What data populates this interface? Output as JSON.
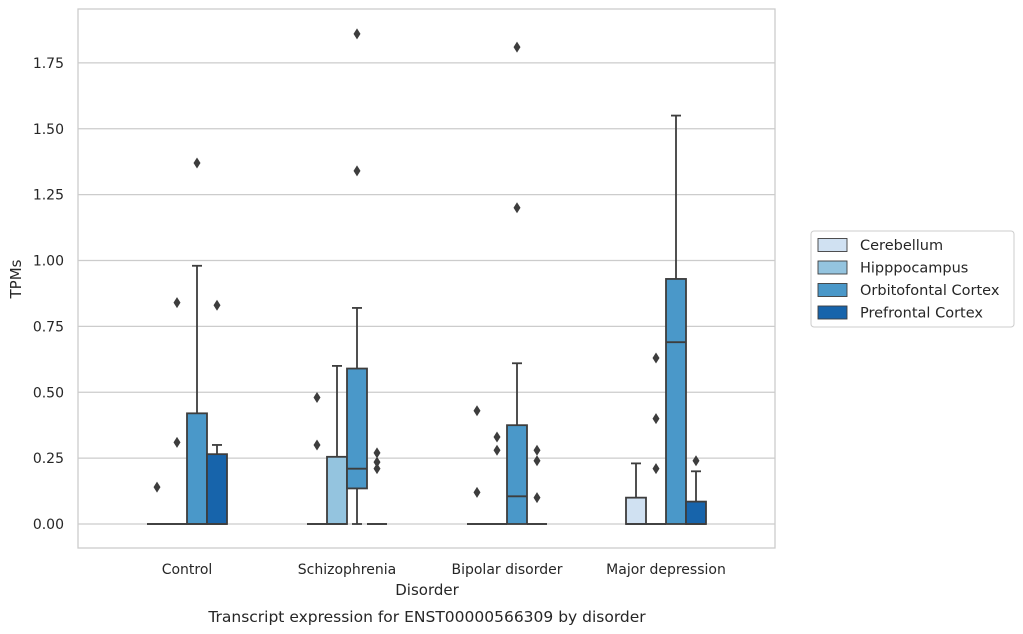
{
  "chart_data": {
    "type": "box",
    "xlabel": "Disorder",
    "ylabel": "TPMs",
    "caption": "Transcript expression for ENST00000566309 by disorder",
    "ylim": [
      -0.09,
      1.96
    ],
    "yticks": [
      0.0,
      0.25,
      0.5,
      0.75,
      1.0,
      1.25,
      1.5,
      1.75
    ],
    "ytick_labels": [
      "0.00",
      "0.25",
      "0.50",
      "0.75",
      "1.00",
      "1.25",
      "1.50",
      "1.75"
    ],
    "grid": "horizontal",
    "legend_position": "right",
    "categories": [
      "Control",
      "Schizophrenia",
      "Bipolar disorder",
      "Major depression"
    ],
    "series": [
      {
        "name": "Cerebellum",
        "color": "#d0e1f2",
        "boxes": [
          {
            "q1": 0,
            "median": 0,
            "q3": 0,
            "whisker_low": 0,
            "whisker_high": 0,
            "outliers": [
              0.14
            ]
          },
          {
            "q1": 0,
            "median": 0,
            "q3": 0,
            "whisker_low": 0,
            "whisker_high": 0,
            "outliers": [
              0.3,
              0.48
            ]
          },
          {
            "q1": 0,
            "median": 0,
            "q3": 0,
            "whisker_low": 0,
            "whisker_high": 0,
            "outliers": [
              0.12,
              0.43
            ]
          },
          {
            "q1": 0,
            "median": 0,
            "q3": 0.1,
            "whisker_low": 0,
            "whisker_high": 0.23,
            "outliers": []
          }
        ]
      },
      {
        "name": "Hipppocampus",
        "color": "#94c4df",
        "boxes": [
          {
            "q1": 0,
            "median": 0,
            "q3": 0,
            "whisker_low": 0,
            "whisker_high": 0,
            "outliers": [
              0.31,
              0.84
            ]
          },
          {
            "q1": 0,
            "median": 0,
            "q3": 0.255,
            "whisker_low": 0,
            "whisker_high": 0.6,
            "outliers": []
          },
          {
            "q1": 0,
            "median": 0,
            "q3": 0,
            "whisker_low": 0,
            "whisker_high": 0,
            "outliers": [
              0.28,
              0.33
            ]
          },
          {
            "q1": 0,
            "median": 0,
            "q3": 0,
            "whisker_low": 0,
            "whisker_high": 0,
            "outliers": [
              0.21,
              0.4,
              0.63
            ]
          }
        ]
      },
      {
        "name": "Orbitofontal Cortex",
        "color": "#4a98c9",
        "boxes": [
          {
            "q1": 0,
            "median": 0,
            "q3": 0.42,
            "whisker_low": 0,
            "whisker_high": 0.98,
            "outliers": [
              1.37
            ]
          },
          {
            "q1": 0.135,
            "median": 0.21,
            "q3": 0.59,
            "whisker_low": 0,
            "whisker_high": 0.82,
            "outliers": [
              1.34,
              1.86
            ]
          },
          {
            "q1": 0,
            "median": 0.105,
            "q3": 0.375,
            "whisker_low": 0,
            "whisker_high": 0.61,
            "outliers": [
              1.2,
              1.81
            ]
          },
          {
            "q1": 0,
            "median": 0.69,
            "q3": 0.93,
            "whisker_low": 0,
            "whisker_high": 1.55,
            "outliers": []
          }
        ]
      },
      {
        "name": "Prefrontal Cortex",
        "color": "#1764ab",
        "boxes": [
          {
            "q1": 0,
            "median": 0,
            "q3": 0.265,
            "whisker_low": 0,
            "whisker_high": 0.3,
            "outliers": [
              0.83
            ]
          },
          {
            "q1": 0,
            "median": 0,
            "q3": 0,
            "whisker_low": 0,
            "whisker_high": 0,
            "outliers": [
              0.21,
              0.235,
              0.27
            ]
          },
          {
            "q1": 0,
            "median": 0,
            "q3": 0,
            "whisker_low": 0,
            "whisker_high": 0,
            "outliers": [
              0.1,
              0.24,
              0.28
            ]
          },
          {
            "q1": 0,
            "median": 0,
            "q3": 0.085,
            "whisker_low": 0,
            "whisker_high": 0.2,
            "outliers": [
              0.24
            ]
          }
        ]
      }
    ]
  },
  "colors": {
    "grid": "#cccccc",
    "frame": "#cccccc",
    "edge": "#3d3d3d",
    "text": "#262626"
  }
}
